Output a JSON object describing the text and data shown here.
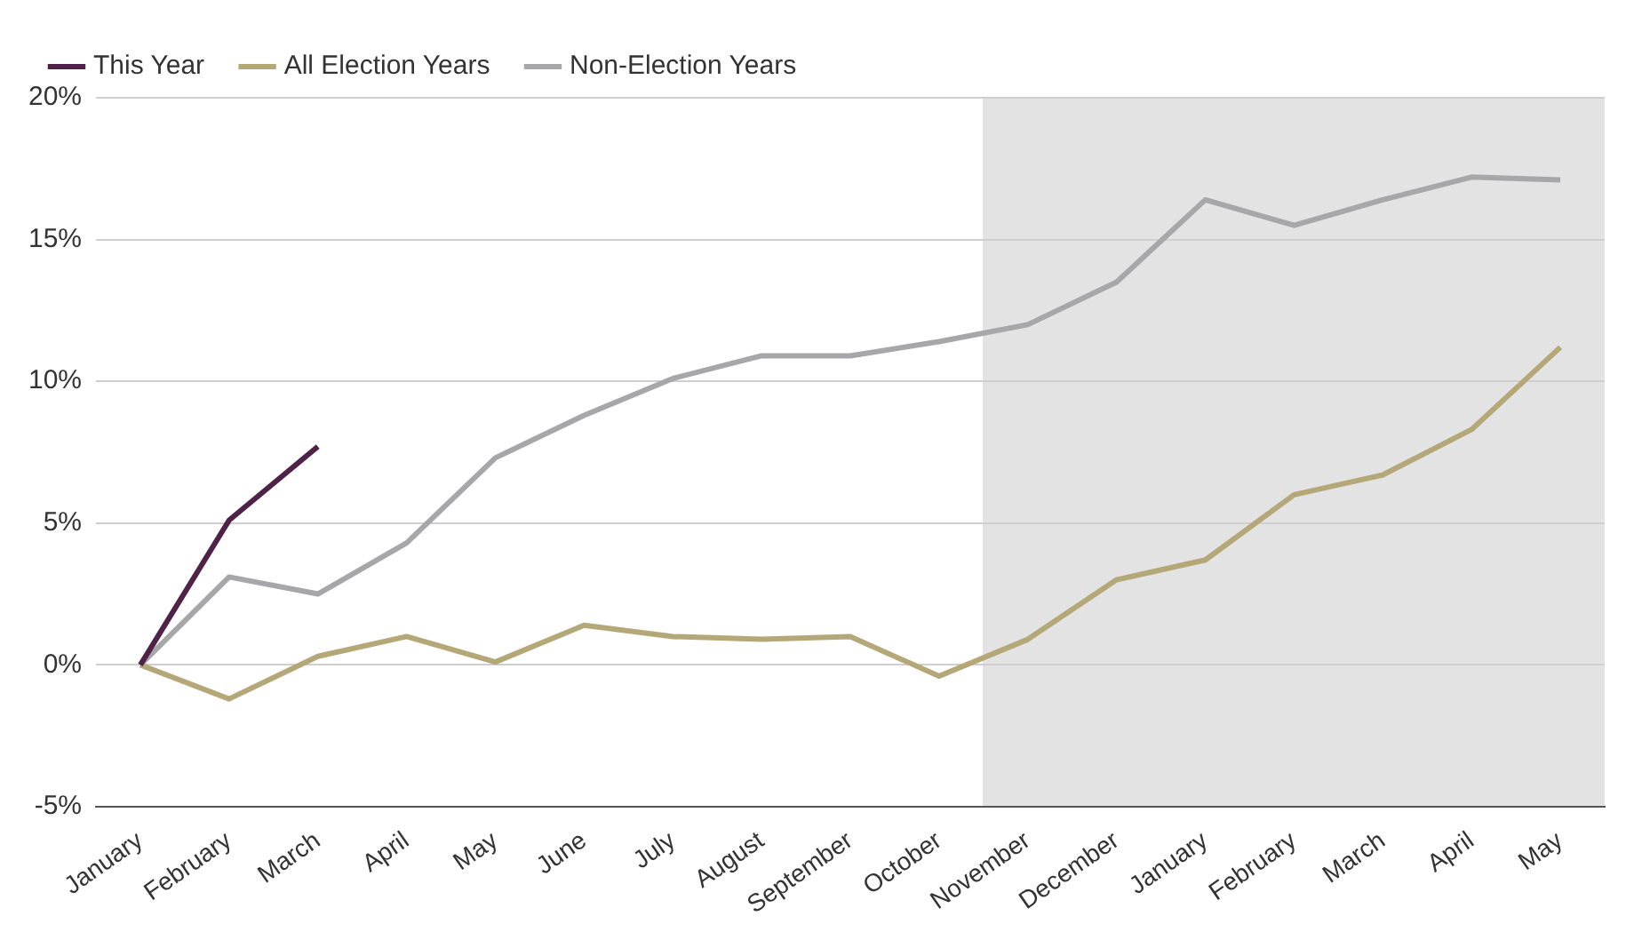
{
  "chart_data": {
    "type": "line",
    "categories": [
      "January",
      "February",
      "March",
      "April",
      "May",
      "June",
      "July",
      "August",
      "September",
      "October",
      "November",
      "December",
      "January",
      "February",
      "March",
      "April",
      "May"
    ],
    "series": [
      {
        "name": "This Year",
        "color": "#4f2348",
        "values": [
          0,
          5.1,
          7.7,
          null,
          null,
          null,
          null,
          null,
          null,
          null,
          null,
          null,
          null,
          null,
          null,
          null,
          null
        ]
      },
      {
        "name": "All Election Years",
        "color": "#b5a878",
        "values": [
          0,
          -1.2,
          0.3,
          1.0,
          0.1,
          1.4,
          1.0,
          0.9,
          1.0,
          -0.4,
          0.9,
          3.0,
          3.7,
          6.0,
          6.7,
          8.3,
          11.2
        ]
      },
      {
        "name": "Non-Election Years",
        "color": "#a7a7a9",
        "values": [
          0,
          3.1,
          2.5,
          4.3,
          7.3,
          8.8,
          10.1,
          10.9,
          10.9,
          11.4,
          12.0,
          13.5,
          16.4,
          15.5,
          16.4,
          17.2,
          17.1
        ]
      }
    ],
    "ylim": [
      -5,
      20
    ],
    "yticks": [
      {
        "value": -5,
        "label": "-5%"
      },
      {
        "value": 0,
        "label": "0%"
      },
      {
        "value": 5,
        "label": "5%"
      },
      {
        "value": 10,
        "label": "10%"
      },
      {
        "value": 15,
        "label": "15%"
      },
      {
        "value": 20,
        "label": "20%"
      }
    ],
    "grid": "y",
    "legend": "top left",
    "marker": "none",
    "line_style": "solid"
  }
}
